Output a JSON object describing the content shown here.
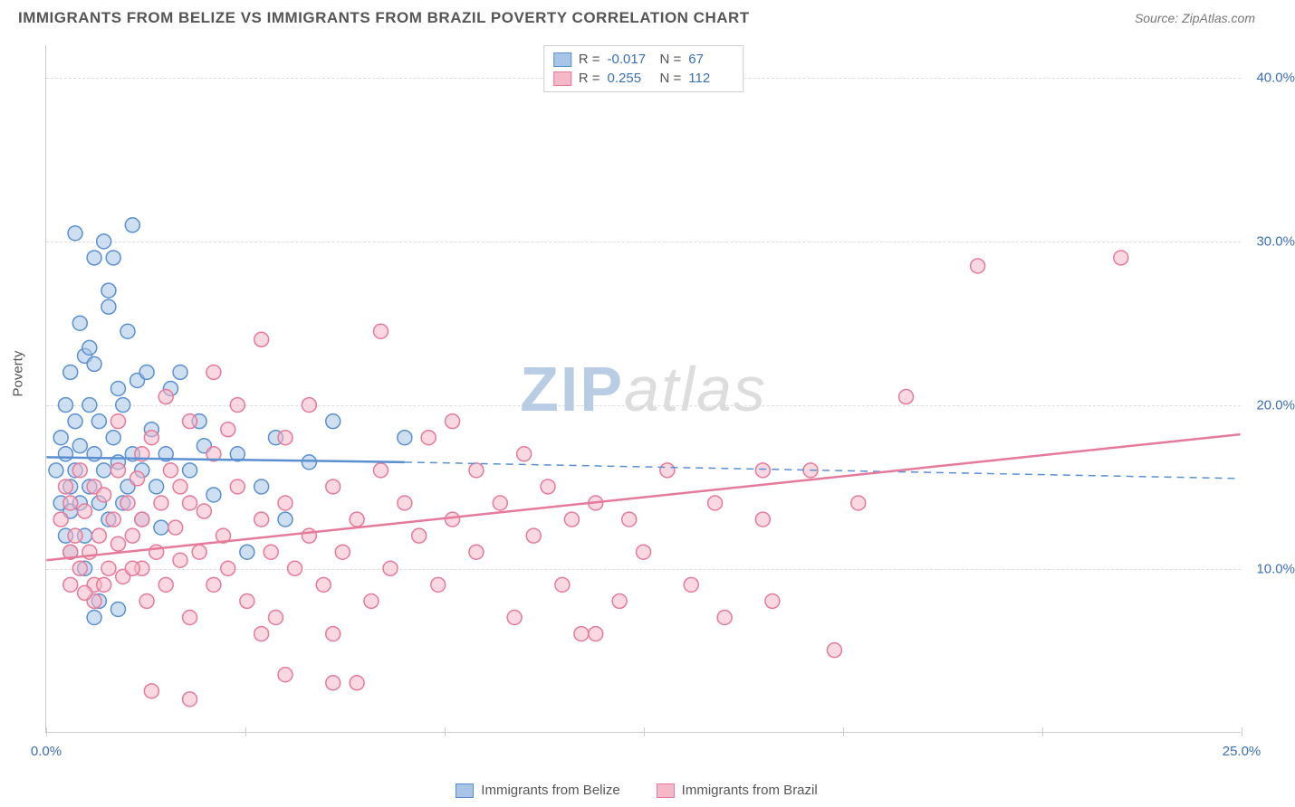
{
  "header": {
    "title": "IMMIGRANTS FROM BELIZE VS IMMIGRANTS FROM BRAZIL POVERTY CORRELATION CHART",
    "source_label": "Source:",
    "source_name": "ZipAtlas.com"
  },
  "chart": {
    "type": "scatter",
    "y_axis_label": "Poverty",
    "xlim": [
      0,
      25
    ],
    "ylim": [
      0,
      42
    ],
    "y_ticks": [
      10,
      20,
      30,
      40
    ],
    "y_tick_labels": [
      "10.0%",
      "20.0%",
      "30.0%",
      "40.0%"
    ],
    "x_ticks": [
      0,
      4.17,
      8.33,
      12.5,
      16.67,
      20.83,
      25
    ],
    "x_tick_labels_shown": {
      "0": "0.0%",
      "25": "25.0%"
    },
    "grid_color": "#dddddd",
    "background_color": "#ffffff",
    "marker_radius": 8,
    "marker_stroke_width": 1.5,
    "line_width_solid": 2.5,
    "line_width_dash": 1.5,
    "series": [
      {
        "name": "Immigrants from Belize",
        "short": "belize",
        "fill_color": "#a8c5e8",
        "stroke_color": "#5a8fd1",
        "fill_opacity": 0.55,
        "R": "-0.017",
        "N": "67",
        "regression_solid": {
          "x1": 0,
          "y1": 16.8,
          "x2": 7.5,
          "y2": 16.5
        },
        "regression_dash": {
          "x1": 7.5,
          "y1": 16.5,
          "x2": 25,
          "y2": 15.5
        },
        "points": [
          [
            0.2,
            16
          ],
          [
            0.3,
            14
          ],
          [
            0.3,
            18
          ],
          [
            0.4,
            12
          ],
          [
            0.4,
            17
          ],
          [
            0.5,
            15
          ],
          [
            0.5,
            22
          ],
          [
            0.5,
            13.5
          ],
          [
            0.6,
            16
          ],
          [
            0.6,
            19
          ],
          [
            0.7,
            14
          ],
          [
            0.7,
            17.5
          ],
          [
            0.8,
            12
          ],
          [
            0.8,
            23
          ],
          [
            0.8,
            10
          ],
          [
            0.9,
            15
          ],
          [
            0.9,
            20
          ],
          [
            1.0,
            17
          ],
          [
            1.0,
            22.5
          ],
          [
            1.1,
            14
          ],
          [
            1.1,
            19
          ],
          [
            1.2,
            30
          ],
          [
            1.2,
            16
          ],
          [
            1.3,
            27
          ],
          [
            1.3,
            26
          ],
          [
            1.3,
            13
          ],
          [
            1.4,
            29
          ],
          [
            1.4,
            18
          ],
          [
            1.5,
            21
          ],
          [
            1.5,
            16.5
          ],
          [
            1.6,
            14
          ],
          [
            1.7,
            24.5
          ],
          [
            1.7,
            15
          ],
          [
            1.8,
            31
          ],
          [
            1.8,
            17
          ],
          [
            1.9,
            21.5
          ],
          [
            2.0,
            16
          ],
          [
            2.0,
            13
          ],
          [
            2.1,
            22
          ],
          [
            2.2,
            18.5
          ],
          [
            2.3,
            15
          ],
          [
            2.4,
            12.5
          ],
          [
            2.5,
            17
          ],
          [
            2.6,
            21
          ],
          [
            1.0,
            7
          ],
          [
            1.1,
            8
          ],
          [
            1.5,
            7.5
          ],
          [
            0.5,
            11
          ],
          [
            0.6,
            30.5
          ],
          [
            1.0,
            29
          ],
          [
            0.7,
            25
          ],
          [
            0.9,
            23.5
          ],
          [
            1.6,
            20
          ],
          [
            3.0,
            16
          ],
          [
            3.2,
            19
          ],
          [
            3.5,
            14.5
          ],
          [
            4.0,
            17
          ],
          [
            4.2,
            11
          ],
          [
            4.5,
            15
          ],
          [
            4.8,
            18
          ],
          [
            5.0,
            13
          ],
          [
            5.5,
            16.5
          ],
          [
            6.0,
            19
          ],
          [
            7.5,
            18
          ],
          [
            2.8,
            22
          ],
          [
            3.3,
            17.5
          ],
          [
            0.4,
            20
          ]
        ]
      },
      {
        "name": "Immigrants from Brazil",
        "short": "brazil",
        "fill_color": "#f5b8c8",
        "stroke_color": "#e67a9a",
        "fill_opacity": 0.55,
        "R": "0.255",
        "N": "112",
        "regression_solid": {
          "x1": 0,
          "y1": 10.5,
          "x2": 25,
          "y2": 18.2
        },
        "regression_dash": null,
        "points": [
          [
            0.3,
            13
          ],
          [
            0.4,
            15
          ],
          [
            0.5,
            11
          ],
          [
            0.5,
            14
          ],
          [
            0.6,
            12
          ],
          [
            0.7,
            10
          ],
          [
            0.7,
            16
          ],
          [
            0.8,
            13.5
          ],
          [
            0.9,
            11
          ],
          [
            1.0,
            15
          ],
          [
            1.0,
            9
          ],
          [
            1.1,
            12
          ],
          [
            1.2,
            14.5
          ],
          [
            1.3,
            10
          ],
          [
            1.4,
            13
          ],
          [
            1.5,
            11.5
          ],
          [
            1.5,
            16
          ],
          [
            1.6,
            9.5
          ],
          [
            1.7,
            14
          ],
          [
            1.8,
            12
          ],
          [
            1.9,
            15.5
          ],
          [
            2.0,
            10
          ],
          [
            2.0,
            13
          ],
          [
            2.1,
            8
          ],
          [
            2.2,
            18
          ],
          [
            2.3,
            11
          ],
          [
            2.4,
            14
          ],
          [
            2.5,
            9
          ],
          [
            2.6,
            16
          ],
          [
            2.7,
            12.5
          ],
          [
            2.8,
            10.5
          ],
          [
            3.0,
            14
          ],
          [
            3.0,
            7
          ],
          [
            3.2,
            11
          ],
          [
            3.3,
            13.5
          ],
          [
            3.5,
            9
          ],
          [
            3.5,
            17
          ],
          [
            3.7,
            12
          ],
          [
            3.8,
            10
          ],
          [
            4.0,
            15
          ],
          [
            4.0,
            20
          ],
          [
            4.2,
            8
          ],
          [
            4.5,
            13
          ],
          [
            4.5,
            24
          ],
          [
            4.7,
            11
          ],
          [
            4.8,
            7
          ],
          [
            5.0,
            14
          ],
          [
            5.0,
            18
          ],
          [
            5.2,
            10
          ],
          [
            5.5,
            12
          ],
          [
            5.5,
            20
          ],
          [
            5.8,
            9
          ],
          [
            6.0,
            15
          ],
          [
            6.0,
            3
          ],
          [
            6.2,
            11
          ],
          [
            6.5,
            13
          ],
          [
            6.8,
            8
          ],
          [
            7.0,
            16
          ],
          [
            7.0,
            24.5
          ],
          [
            7.2,
            10
          ],
          [
            7.5,
            14
          ],
          [
            7.8,
            12
          ],
          [
            8.0,
            18
          ],
          [
            8.2,
            9
          ],
          [
            8.5,
            13
          ],
          [
            8.5,
            19
          ],
          [
            9.0,
            11
          ],
          [
            9.0,
            16
          ],
          [
            9.5,
            14
          ],
          [
            9.8,
            7
          ],
          [
            10.0,
            17
          ],
          [
            10.2,
            12
          ],
          [
            10.5,
            15
          ],
          [
            10.8,
            9
          ],
          [
            11.0,
            13
          ],
          [
            11.2,
            6
          ],
          [
            11.5,
            14
          ],
          [
            12.0,
            8
          ],
          [
            12.2,
            13
          ],
          [
            12.5,
            11
          ],
          [
            13.0,
            16
          ],
          [
            13.5,
            9
          ],
          [
            14.0,
            14
          ],
          [
            14.2,
            7
          ],
          [
            15.0,
            13
          ],
          [
            15.0,
            16
          ],
          [
            15.2,
            8
          ],
          [
            16.0,
            16
          ],
          [
            16.5,
            5
          ],
          [
            17.0,
            14
          ],
          [
            18.0,
            20.5
          ],
          [
            19.5,
            28.5
          ],
          [
            22.5,
            29
          ],
          [
            1.5,
            19
          ],
          [
            2.0,
            17
          ],
          [
            2.5,
            20.5
          ],
          [
            3.0,
            19
          ],
          [
            3.8,
            18.5
          ],
          [
            5.0,
            3.5
          ],
          [
            4.5,
            6
          ],
          [
            6.0,
            6
          ],
          [
            1.0,
            8
          ],
          [
            1.2,
            9
          ],
          [
            0.5,
            9
          ],
          [
            0.8,
            8.5
          ],
          [
            3.5,
            22
          ],
          [
            2.8,
            15
          ],
          [
            1.8,
            10
          ],
          [
            2.2,
            2.5
          ],
          [
            3.0,
            2
          ],
          [
            6.5,
            3
          ],
          [
            11.5,
            6
          ]
        ]
      }
    ]
  },
  "legend_top": {
    "R_label": "R =",
    "N_label": "N ="
  },
  "legend_bottom": {
    "items": [
      "Immigrants from Belize",
      "Immigrants from Brazil"
    ]
  },
  "watermark": {
    "part1": "ZIP",
    "part2": "atlas"
  }
}
